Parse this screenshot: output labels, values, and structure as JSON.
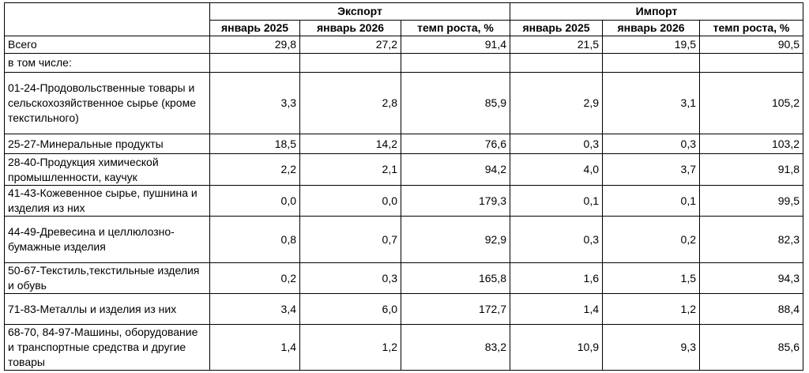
{
  "table": {
    "groups": [
      "Экспорт",
      "Импорт"
    ],
    "columns": [
      "январь 2025",
      "январь 2026",
      "темп роста,  %",
      "январь 2025",
      "январь 2026",
      "темп роста, %"
    ],
    "rows": [
      {
        "label": "Всего",
        "values": [
          "29,8",
          "27,2",
          "91,4",
          "21,5",
          "19,5",
          "90,5"
        ]
      },
      {
        "label": "в том числе:",
        "values": []
      },
      {
        "label": "01-24-Продовольственные товары и сельскохозяйственное сырье (кроме текстильного)",
        "values": [
          "3,3",
          "2,8",
          "85,9",
          "2,9",
          "3,1",
          "105,2"
        ]
      },
      {
        "label": "25-27-Минеральные продукты",
        "values": [
          "18,5",
          "14,2",
          "76,6",
          "0,3",
          "0,3",
          "103,2"
        ]
      },
      {
        "label": "28-40-Продукция химической промышленности, каучук",
        "values": [
          "2,2",
          "2,1",
          "94,2",
          "4,0",
          "3,7",
          "91,8"
        ]
      },
      {
        "label": "41-43-Кожевенное сырье, пушнина и изделия из них",
        "values": [
          "0,0",
          "0,0",
          "179,3",
          "0,1",
          "0,1",
          "99,5"
        ]
      },
      {
        "label": "44-49-Древесина и целлюлозно-бумажные изделия",
        "values": [
          "0,8",
          "0,7",
          "92,9",
          "0,3",
          "0,2",
          "82,3"
        ]
      },
      {
        "label": "50-67-Текстиль,текстильные изделия и обувь",
        "values": [
          "0,2",
          "0,3",
          "165,8",
          "1,6",
          "1,5",
          "94,3"
        ]
      },
      {
        "label": "71-83-Металлы и изделия из них",
        "values": [
          "3,4",
          "6,0",
          "172,7",
          "1,4",
          "1,2",
          "88,4"
        ]
      },
      {
        "label": "68-70, 84-97-Машины, оборудование и транспортные средства и другие товары",
        "values": [
          "1,4",
          "1,2",
          "83,2",
          "10,9",
          "9,3",
          "85,6"
        ]
      }
    ]
  }
}
